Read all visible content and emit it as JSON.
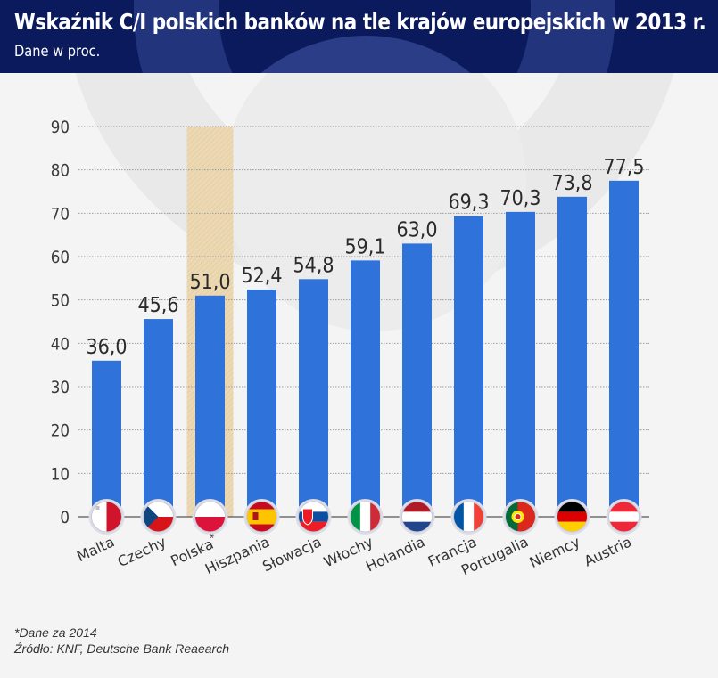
{
  "header": {
    "title": "Wskaźnik C/I polskich banków na tle krajów europejskich w 2013 r.",
    "subtitle": "Dane w proc."
  },
  "colors": {
    "header_bg": "#0b1a5c",
    "bar": "#2f72d9",
    "highlight": "#ecd9b4",
    "grid": "#9a9a9a",
    "text": "#2a2a2a"
  },
  "chart_data": {
    "type": "bar",
    "title": "Wskaźnik C/I polskich banków na tle krajów europejskich w 2013 r.",
    "subtitle": "Dane w proc.",
    "xlabel": "",
    "ylabel": "",
    "ylim": [
      0,
      90
    ],
    "yticks": [
      0,
      10,
      20,
      30,
      40,
      50,
      60,
      70,
      80,
      90
    ],
    "grid": true,
    "highlight_category": "Polska*",
    "categories": [
      "Malta",
      "Czechy",
      "Polska*",
      "Hiszpania",
      "Słowacja",
      "Włochy",
      "Holandia",
      "Francja",
      "Portugalia",
      "Niemcy",
      "Austria"
    ],
    "values": [
      36.0,
      45.6,
      51.0,
      52.4,
      54.8,
      59.1,
      63.0,
      69.3,
      70.3,
      73.8,
      77.5
    ],
    "value_labels": [
      "36,0",
      "45,6",
      "51,0",
      "52,4",
      "54,8",
      "59,1",
      "63,0",
      "69,3",
      "70,3",
      "73,8",
      "77,5"
    ],
    "flags": [
      "malta-flag",
      "czech-flag",
      "poland-flag",
      "spain-flag",
      "slovakia-flag",
      "italy-flag",
      "netherlands-flag",
      "france-flag",
      "portugal-flag",
      "germany-flag",
      "austria-flag"
    ]
  },
  "footer": {
    "note": "*Dane za 2014",
    "source": "Źródło: KNF, Deutsche Bank Reaearch"
  }
}
